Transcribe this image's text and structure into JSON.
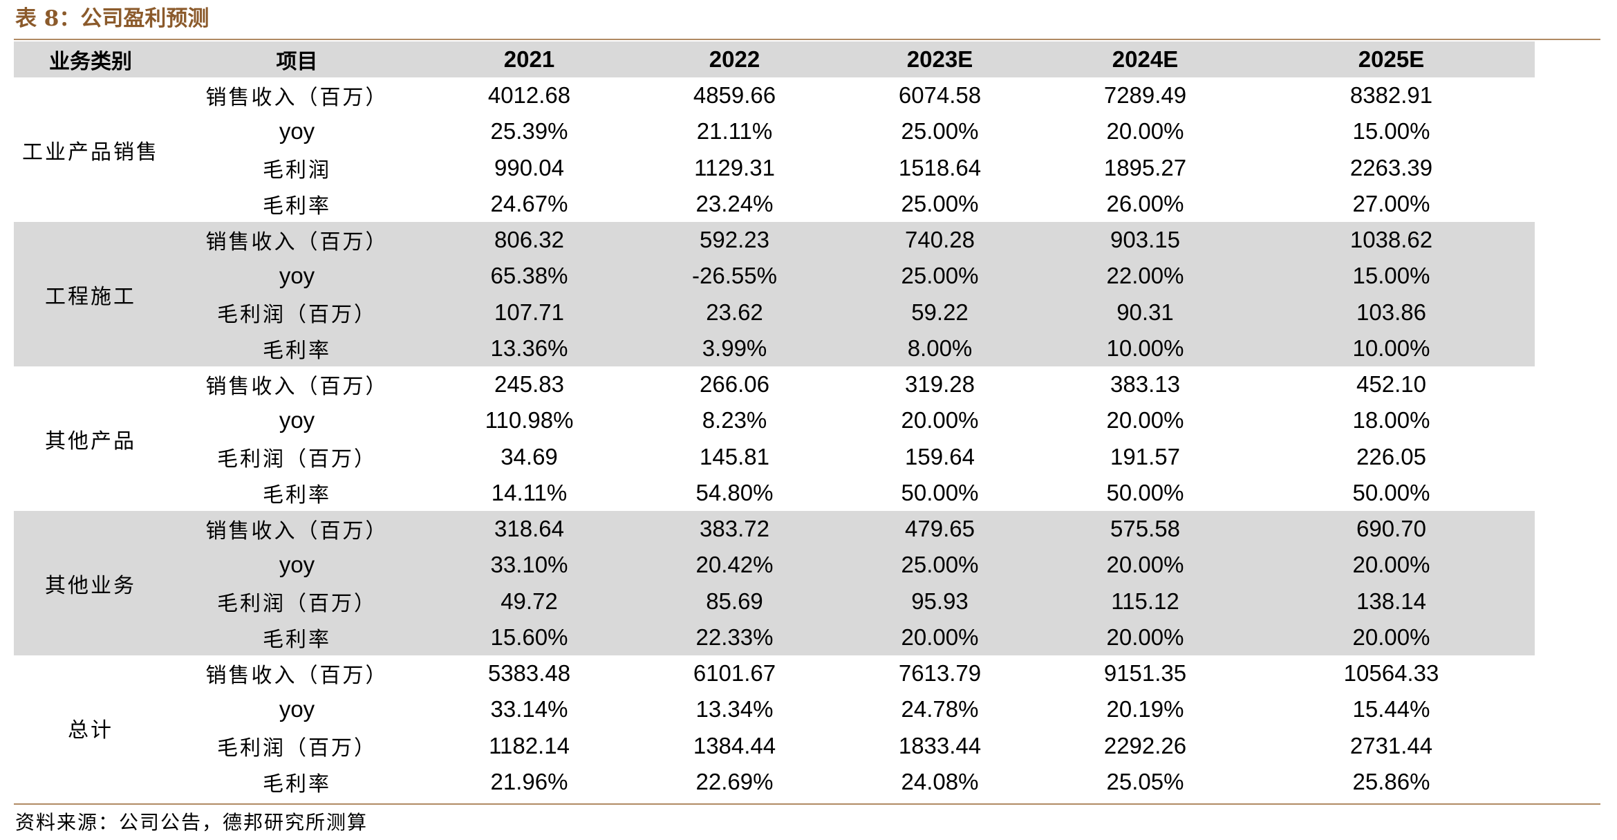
{
  "title": "表 8：公司盈利预测",
  "header": [
    "业务类别",
    "项目",
    "2021",
    "2022",
    "2023E",
    "2024E",
    "2025E"
  ],
  "groups": [
    {
      "category": "工业产品销售",
      "rows": [
        {
          "item": "销售收入（百万）",
          "values": [
            "4012.68",
            "4859.66",
            "6074.58",
            "7289.49",
            "8382.91"
          ]
        },
        {
          "item": "yoy",
          "values": [
            "25.39%",
            "21.11%",
            "25.00%",
            "20.00%",
            "15.00%"
          ]
        },
        {
          "item": "毛利润",
          "values": [
            "990.04",
            "1129.31",
            "1518.64",
            "1895.27",
            "2263.39"
          ]
        },
        {
          "item": "毛利率",
          "values": [
            "24.67%",
            "23.24%",
            "25.00%",
            "26.00%",
            "27.00%"
          ]
        }
      ]
    },
    {
      "category": "工程施工",
      "rows": [
        {
          "item": "销售收入（百万）",
          "values": [
            "806.32",
            "592.23",
            "740.28",
            "903.15",
            "1038.62"
          ]
        },
        {
          "item": "yoy",
          "values": [
            "65.38%",
            "-26.55%",
            "25.00%",
            "22.00%",
            "15.00%"
          ]
        },
        {
          "item": "毛利润（百万）",
          "values": [
            "107.71",
            "23.62",
            "59.22",
            "90.31",
            "103.86"
          ]
        },
        {
          "item": "毛利率",
          "values": [
            "13.36%",
            "3.99%",
            "8.00%",
            "10.00%",
            "10.00%"
          ]
        }
      ]
    },
    {
      "category": "其他产品",
      "rows": [
        {
          "item": "销售收入（百万）",
          "values": [
            "245.83",
            "266.06",
            "319.28",
            "383.13",
            "452.10"
          ]
        },
        {
          "item": "yoy",
          "values": [
            "110.98%",
            "8.23%",
            "20.00%",
            "20.00%",
            "18.00%"
          ]
        },
        {
          "item": "毛利润（百万）",
          "values": [
            "34.69",
            "145.81",
            "159.64",
            "191.57",
            "226.05"
          ]
        },
        {
          "item": "毛利率",
          "values": [
            "14.11%",
            "54.80%",
            "50.00%",
            "50.00%",
            "50.00%"
          ]
        }
      ]
    },
    {
      "category": "其他业务",
      "rows": [
        {
          "item": "销售收入（百万）",
          "values": [
            "318.64",
            "383.72",
            "479.65",
            "575.58",
            "690.70"
          ]
        },
        {
          "item": "yoy",
          "values": [
            "33.10%",
            "20.42%",
            "25.00%",
            "20.00%",
            "20.00%"
          ]
        },
        {
          "item": "毛利润（百万）",
          "values": [
            "49.72",
            "85.69",
            "95.93",
            "115.12",
            "138.14"
          ]
        },
        {
          "item": "毛利率",
          "values": [
            "15.60%",
            "22.33%",
            "20.00%",
            "20.00%",
            "20.00%"
          ]
        }
      ]
    },
    {
      "category": "总计",
      "rows": [
        {
          "item": "销售收入（百万）",
          "values": [
            "5383.48",
            "6101.67",
            "7613.79",
            "9151.35",
            "10564.33"
          ]
        },
        {
          "item": "yoy",
          "values": [
            "33.14%",
            "13.34%",
            "24.78%",
            "20.19%",
            "15.44%"
          ]
        },
        {
          "item": "毛利润（百万）",
          "values": [
            "1182.14",
            "1384.44",
            "1833.44",
            "2292.26",
            "2731.44"
          ]
        },
        {
          "item": "毛利率",
          "values": [
            "21.96%",
            "22.69%",
            "24.08%",
            "25.05%",
            "25.86%"
          ]
        }
      ]
    }
  ],
  "source": "资料来源：公司公告，德邦研究所测算",
  "colors": {
    "title": "#8B5A2B",
    "rule": "#B08A63",
    "shade": "#D9D9D9"
  }
}
